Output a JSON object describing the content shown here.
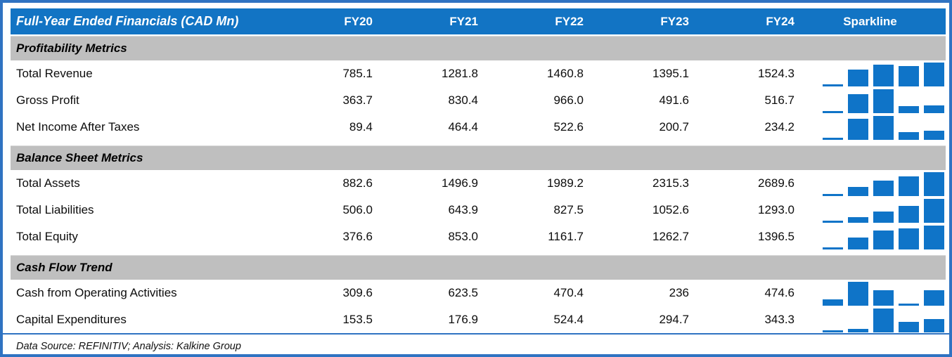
{
  "table": {
    "title": "Full-Year Ended Financials (CAD Mn)",
    "columns": [
      "FY20",
      "FY21",
      "FY22",
      "FY23",
      "FY24"
    ],
    "sparkline_header": "Sparkline",
    "sections": [
      {
        "label": "Profitability Metrics",
        "rows": [
          {
            "label": "Total Revenue",
            "values": [
              "785.1",
              "1281.8",
              "1460.8",
              "1395.1",
              "1524.3"
            ]
          },
          {
            "label": "Gross Profit",
            "values": [
              "363.7",
              "830.4",
              "966.0",
              "491.6",
              "516.7"
            ]
          },
          {
            "label": "Net Income After Taxes",
            "values": [
              "89.4",
              "464.4",
              "522.6",
              "200.7",
              "234.2"
            ]
          }
        ]
      },
      {
        "label": "Balance Sheet Metrics",
        "rows": [
          {
            "label": "Total Assets",
            "values": [
              "882.6",
              "1496.9",
              "1989.2",
              "2315.3",
              "2689.6"
            ]
          },
          {
            "label": "Total Liabilities",
            "values": [
              "506.0",
              "643.9",
              "827.5",
              "1052.6",
              "1293.0"
            ]
          },
          {
            "label": "Total Equity",
            "values": [
              "376.6",
              "853.0",
              "1161.7",
              "1262.7",
              "1396.5"
            ]
          }
        ]
      },
      {
        "label": "Cash Flow Trend",
        "rows": [
          {
            "label": "Cash from Operating Activities",
            "values": [
              "309.6",
              "623.5",
              "470.4",
              "236",
              "474.6"
            ]
          },
          {
            "label": "Capital Expenditures",
            "values": [
              "153.5",
              "176.9",
              "524.4",
              "294.7",
              "343.3"
            ]
          }
        ]
      }
    ],
    "footer": "Data Source: REFINITIV; Analysis: Kalkine Group"
  },
  "colors": {
    "header_bg": "#1274c4",
    "section_bg": "#bfbfbf",
    "sparkline": "#0f74c8",
    "border": "#2f73c2"
  },
  "chart_data": {
    "type": "table",
    "title": "Full-Year Ended Financials (CAD Mn)",
    "categories": [
      "FY20",
      "FY21",
      "FY22",
      "FY23",
      "FY24"
    ],
    "series": [
      {
        "name": "Total Revenue",
        "section": "Profitability Metrics",
        "values": [
          785.1,
          1281.8,
          1460.8,
          1395.1,
          1524.3
        ]
      },
      {
        "name": "Gross Profit",
        "section": "Profitability Metrics",
        "values": [
          363.7,
          830.4,
          966.0,
          491.6,
          516.7
        ]
      },
      {
        "name": "Net Income After Taxes",
        "section": "Profitability Metrics",
        "values": [
          89.4,
          464.4,
          522.6,
          200.7,
          234.2
        ]
      },
      {
        "name": "Total Assets",
        "section": "Balance Sheet Metrics",
        "values": [
          882.6,
          1496.9,
          1989.2,
          2315.3,
          2689.6
        ]
      },
      {
        "name": "Total Liabilities",
        "section": "Balance Sheet Metrics",
        "values": [
          506.0,
          643.9,
          827.5,
          1052.6,
          1293.0
        ]
      },
      {
        "name": "Total Equity",
        "section": "Balance Sheet Metrics",
        "values": [
          376.6,
          853.0,
          1161.7,
          1262.7,
          1396.5
        ]
      },
      {
        "name": "Cash from Operating Activities",
        "section": "Cash Flow Trend",
        "values": [
          309.6,
          623.5,
          470.4,
          236,
          474.6
        ]
      },
      {
        "name": "Capital Expenditures",
        "section": "Cash Flow Trend",
        "values": [
          153.5,
          176.9,
          524.4,
          294.7,
          343.3
        ]
      }
    ],
    "sparkline_type": "column",
    "sparkline_scaling": "per-row min-to-max, minimum value rendered as thin sliver",
    "units": "CAD Mn",
    "grid": false,
    "legend": "none"
  }
}
